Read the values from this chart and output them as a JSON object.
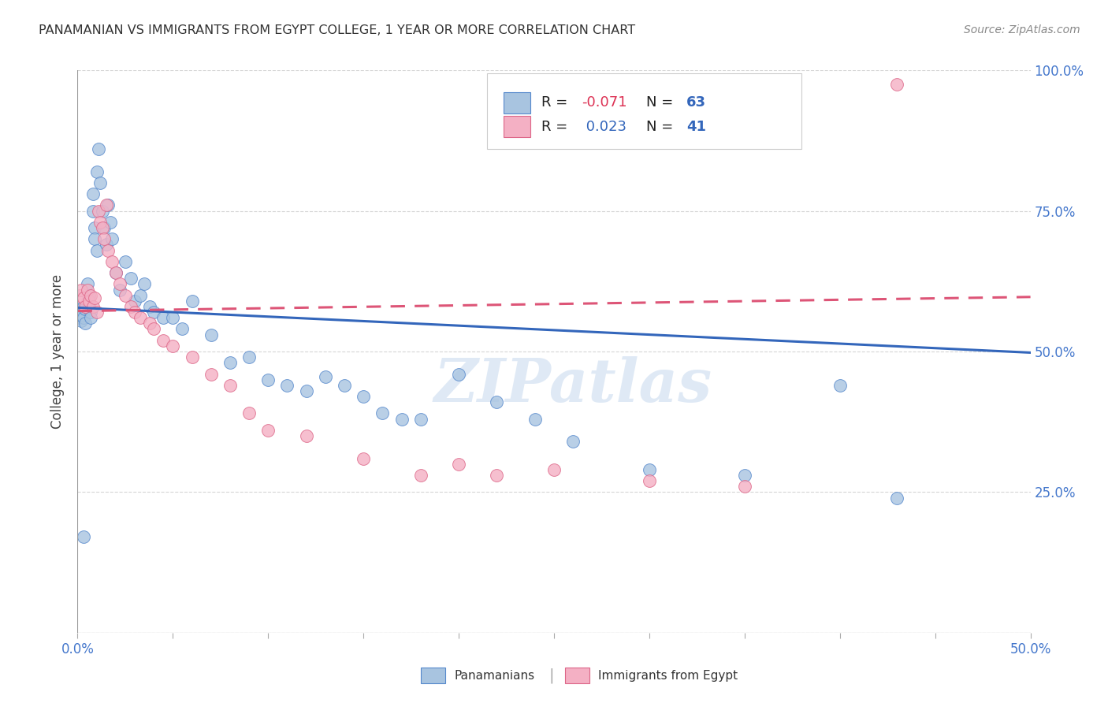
{
  "title": "PANAMANIAN VS IMMIGRANTS FROM EGYPT COLLEGE, 1 YEAR OR MORE CORRELATION CHART",
  "source": "Source: ZipAtlas.com",
  "ylabel": "College, 1 year or more",
  "xmin": 0.0,
  "xmax": 0.5,
  "ymin": 0.0,
  "ymax": 1.0,
  "ytick_positions": [
    0.0,
    0.25,
    0.5,
    0.75,
    1.0
  ],
  "ytick_labels_right": [
    "",
    "25.0%",
    "50.0%",
    "75.0%",
    "100.0%"
  ],
  "R_blue": -0.071,
  "N_blue": 63,
  "R_pink": 0.023,
  "N_pink": 41,
  "blue_fill": "#a8c4e0",
  "blue_edge": "#5588cc",
  "pink_fill": "#f4b0c4",
  "pink_edge": "#dd6688",
  "blue_line": "#3366bb",
  "pink_line": "#dd5577",
  "watermark": "ZIPatlas",
  "blue_x": [
    0.001,
    0.001,
    0.002,
    0.002,
    0.002,
    0.003,
    0.003,
    0.004,
    0.004,
    0.005,
    0.005,
    0.006,
    0.006,
    0.007,
    0.007,
    0.008,
    0.008,
    0.009,
    0.009,
    0.01,
    0.01,
    0.011,
    0.012,
    0.013,
    0.014,
    0.015,
    0.016,
    0.017,
    0.018,
    0.02,
    0.022,
    0.025,
    0.028,
    0.03,
    0.033,
    0.035,
    0.038,
    0.04,
    0.045,
    0.05,
    0.055,
    0.06,
    0.07,
    0.08,
    0.09,
    0.1,
    0.11,
    0.12,
    0.13,
    0.14,
    0.15,
    0.16,
    0.17,
    0.18,
    0.2,
    0.22,
    0.24,
    0.26,
    0.3,
    0.35,
    0.4,
    0.43,
    0.003
  ],
  "blue_y": [
    0.575,
    0.56,
    0.57,
    0.555,
    0.565,
    0.58,
    0.56,
    0.575,
    0.55,
    0.59,
    0.62,
    0.58,
    0.6,
    0.57,
    0.56,
    0.75,
    0.78,
    0.72,
    0.7,
    0.68,
    0.82,
    0.86,
    0.8,
    0.75,
    0.72,
    0.69,
    0.76,
    0.73,
    0.7,
    0.64,
    0.61,
    0.66,
    0.63,
    0.59,
    0.6,
    0.62,
    0.58,
    0.57,
    0.56,
    0.56,
    0.54,
    0.59,
    0.53,
    0.48,
    0.49,
    0.45,
    0.44,
    0.43,
    0.455,
    0.44,
    0.42,
    0.39,
    0.38,
    0.38,
    0.46,
    0.41,
    0.38,
    0.34,
    0.29,
    0.28,
    0.44,
    0.24,
    0.17
  ],
  "pink_x": [
    0.001,
    0.002,
    0.003,
    0.004,
    0.005,
    0.006,
    0.007,
    0.008,
    0.009,
    0.01,
    0.011,
    0.012,
    0.013,
    0.014,
    0.015,
    0.016,
    0.018,
    0.02,
    0.022,
    0.025,
    0.028,
    0.03,
    0.033,
    0.038,
    0.04,
    0.045,
    0.05,
    0.06,
    0.07,
    0.08,
    0.09,
    0.1,
    0.12,
    0.15,
    0.18,
    0.2,
    0.22,
    0.25,
    0.3,
    0.35,
    0.43
  ],
  "pink_y": [
    0.6,
    0.61,
    0.595,
    0.58,
    0.61,
    0.59,
    0.6,
    0.58,
    0.595,
    0.57,
    0.75,
    0.73,
    0.72,
    0.7,
    0.76,
    0.68,
    0.66,
    0.64,
    0.62,
    0.6,
    0.58,
    0.57,
    0.56,
    0.55,
    0.54,
    0.52,
    0.51,
    0.49,
    0.46,
    0.44,
    0.39,
    0.36,
    0.35,
    0.31,
    0.28,
    0.3,
    0.28,
    0.29,
    0.27,
    0.26,
    0.975
  ]
}
